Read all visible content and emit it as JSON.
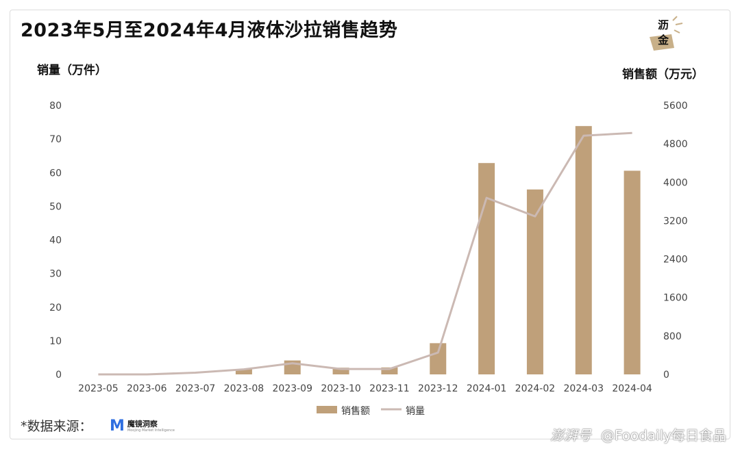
{
  "chart_data": {
    "type": "bar",
    "title": "2023年5月至2024年4月液体沙拉销售趋势",
    "y_left_label": "销量（万件）",
    "y_right_label": "销售额（万元）",
    "categories": [
      "2023-05",
      "2023-06",
      "2023-07",
      "2023-08",
      "2023-09",
      "2023-10",
      "2023-11",
      "2023-12",
      "2024-01",
      "2024-02",
      "2024-03",
      "2024-04"
    ],
    "ylim_left": [
      0,
      80
    ],
    "yticks_left": [
      0,
      10,
      20,
      30,
      40,
      50,
      60,
      70,
      80
    ],
    "ylim_right": [
      0,
      5600
    ],
    "yticks_right": [
      0,
      800,
      1600,
      2400,
      3200,
      4000,
      4800,
      5600
    ],
    "series": [
      {
        "name": "销售额",
        "type": "bar",
        "axis": "right",
        "color": "#bfa07a",
        "values": [
          0,
          0,
          0,
          110,
          290,
          140,
          145,
          650,
          4400,
          3850,
          5170,
          4240
        ]
      },
      {
        "name": "销量",
        "type": "line",
        "axis": "left",
        "color": "#cbb9b3",
        "values": [
          0,
          0,
          0.5,
          1.5,
          3.3,
          1.6,
          1.6,
          6.5,
          52.5,
          47,
          71,
          71.8
        ]
      }
    ],
    "legend_position": "bottom",
    "grid": false
  },
  "footer": {
    "source_label": "*数据来源：",
    "brand_name": "魔镜洞察",
    "brand_sub": "Moojing Market Intelligence",
    "brand_mark": "M",
    "logo_text_top": "沥",
    "logo_text_bottom": "金",
    "watermark_left": "澎湃号",
    "watermark_right": "@Foodaily每日食品"
  },
  "colors": {
    "bar": "#bfa07a",
    "line": "#cbb9b3",
    "text": "#111111",
    "tick": "#444444"
  }
}
